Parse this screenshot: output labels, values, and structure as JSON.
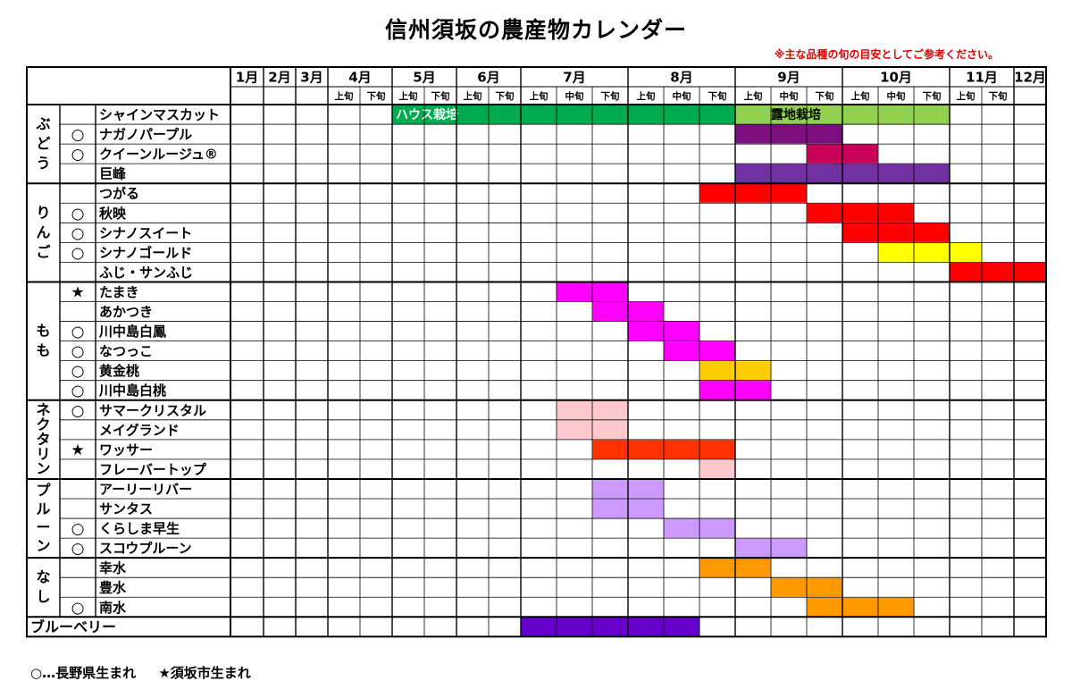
{
  "title": "信州須坂の農産物カレンダー",
  "note": "※主な品種の旬の目安としてご参考ください。",
  "legend": {
    "circle": "○…長野県生まれ",
    "star": "★須坂市生まれ"
  },
  "colors": {
    "house_green": "#00aa4e",
    "open_green": "#92d050",
    "purple_dark": "#7b0f80",
    "crimson": "#c8005a",
    "purple": "#7030a0",
    "red": "#ff0000",
    "yellow": "#ffff00",
    "magenta": "#ff00ff",
    "gold": "#ffcc00",
    "pink_light": "#ffc7ce",
    "orange_red": "#ff3300",
    "lavender": "#cc99ff",
    "orange": "#ff9900",
    "violet": "#6600cc"
  },
  "chart_data": {
    "type": "table",
    "months": [
      {
        "label": "1月",
        "subs": []
      },
      {
        "label": "2月",
        "subs": []
      },
      {
        "label": "3月",
        "subs": []
      },
      {
        "label": "4月",
        "subs": [
          "上旬",
          "下旬"
        ]
      },
      {
        "label": "5月",
        "subs": [
          "上旬",
          "下旬"
        ]
      },
      {
        "label": "6月",
        "subs": [
          "上旬",
          "下旬"
        ]
      },
      {
        "label": "7月",
        "subs": [
          "上旬",
          "中旬",
          "下旬"
        ]
      },
      {
        "label": "8月",
        "subs": [
          "上旬",
          "中旬",
          "下旬"
        ]
      },
      {
        "label": "9月",
        "subs": [
          "上旬",
          "中旬",
          "下旬"
        ]
      },
      {
        "label": "10月",
        "subs": [
          "上旬",
          "中旬",
          "下旬"
        ]
      },
      {
        "label": "11月",
        "subs": [
          "上旬",
          "下旬"
        ]
      },
      {
        "label": "12月",
        "subs": []
      }
    ],
    "groups": [
      {
        "name": "ぶどう",
        "items": [
          {
            "name": "シャインマスカット",
            "mark": "",
            "bars": [
              {
                "start": 4,
                "end": 8.0,
                "color": "#00aa4e",
                "label": "ハウス栽培"
              },
              {
                "start": 8.0,
                "end": 10.0,
                "color": "#92d050",
                "label": "露地栽培"
              }
            ]
          },
          {
            "name": "ナガノパープル",
            "mark": "○",
            "bars": [
              {
                "start": 8.0,
                "end": 9.0,
                "color": "#7b0f80"
              }
            ]
          },
          {
            "name": "クイーンルージュ®",
            "mark": "○",
            "bars": [
              {
                "start": 8.67,
                "end": 9.33,
                "color": "#c8005a"
              }
            ]
          },
          {
            "name": "巨峰",
            "mark": "",
            "bars": [
              {
                "start": 8.0,
                "end": 10.0,
                "color": "#7030a0"
              }
            ]
          }
        ]
      },
      {
        "name": "りんご",
        "items": [
          {
            "name": "つがる",
            "mark": "",
            "bars": [
              {
                "start": 7.67,
                "end": 8.67,
                "color": "#ff0000"
              }
            ]
          },
          {
            "name": "秋映",
            "mark": "○",
            "bars": [
              {
                "start": 8.67,
                "end": 9.67,
                "color": "#ff0000"
              }
            ]
          },
          {
            "name": "シナノスイート",
            "mark": "○",
            "bars": [
              {
                "start": 9.0,
                "end": 10.0,
                "color": "#ff0000"
              }
            ]
          },
          {
            "name": "シナノゴールド",
            "mark": "○",
            "bars": [
              {
                "start": 9.33,
                "end": 10.5,
                "color": "#ffff00"
              }
            ]
          },
          {
            "name": "ふじ・サンふじ",
            "mark": "",
            "bars": [
              {
                "start": 10.0,
                "end": 12.0,
                "color": "#ff0000"
              }
            ]
          }
        ]
      },
      {
        "name": "もも",
        "items": [
          {
            "name": "たまき",
            "mark": "★",
            "bars": [
              {
                "start": 6.33,
                "end": 7.0,
                "color": "#ff00ff"
              }
            ]
          },
          {
            "name": "あかつき",
            "mark": "",
            "bars": [
              {
                "start": 6.67,
                "end": 7.33,
                "color": "#ff00ff"
              }
            ]
          },
          {
            "name": "川中島白鳳",
            "mark": "○",
            "bars": [
              {
                "start": 7.0,
                "end": 7.67,
                "color": "#ff00ff"
              }
            ]
          },
          {
            "name": "なつっこ",
            "mark": "○",
            "bars": [
              {
                "start": 7.33,
                "end": 8.0,
                "color": "#ff00ff"
              }
            ]
          },
          {
            "name": "黄金桃",
            "mark": "○",
            "bars": [
              {
                "start": 7.67,
                "end": 8.33,
                "color": "#ffcc00"
              }
            ]
          },
          {
            "name": "川中島白桃",
            "mark": "○",
            "bars": [
              {
                "start": 7.67,
                "end": 8.33,
                "color": "#ff00ff"
              }
            ]
          }
        ]
      },
      {
        "name": "ネクタリン",
        "items": [
          {
            "name": "サマークリスタル",
            "mark": "○",
            "bars": [
              {
                "start": 6.33,
                "end": 7.0,
                "color": "#ffc7ce"
              }
            ]
          },
          {
            "name": "メイグランド",
            "mark": "",
            "bars": [
              {
                "start": 6.33,
                "end": 7.0,
                "color": "#ffc7ce"
              }
            ]
          },
          {
            "name": "ワッサー",
            "mark": "★",
            "bars": [
              {
                "start": 6.67,
                "end": 8.0,
                "color": "#ff3300"
              }
            ]
          },
          {
            "name": "フレーバートップ",
            "mark": "",
            "bars": [
              {
                "start": 7.67,
                "end": 8.0,
                "color": "#ffc7ce"
              }
            ]
          }
        ]
      },
      {
        "name": "プルーン",
        "items": [
          {
            "name": "アーリーリバー",
            "mark": "",
            "bars": [
              {
                "start": 6.67,
                "end": 7.33,
                "color": "#cc99ff"
              }
            ]
          },
          {
            "name": "サンタス",
            "mark": "",
            "bars": [
              {
                "start": 6.67,
                "end": 7.33,
                "color": "#cc99ff"
              }
            ]
          },
          {
            "name": "くらしま早生",
            "mark": "○",
            "bars": [
              {
                "start": 7.33,
                "end": 8.0,
                "color": "#cc99ff"
              }
            ]
          },
          {
            "name": "スコウプルーン",
            "mark": "○",
            "bars": [
              {
                "start": 8.0,
                "end": 8.67,
                "color": "#cc99ff"
              }
            ]
          }
        ]
      },
      {
        "name": "なし",
        "items": [
          {
            "name": "幸水",
            "mark": "",
            "bars": [
              {
                "start": 7.67,
                "end": 8.33,
                "color": "#ff9900"
              }
            ]
          },
          {
            "name": "豊水",
            "mark": "",
            "bars": [
              {
                "start": 8.33,
                "end": 9.0,
                "color": "#ff9900"
              }
            ]
          },
          {
            "name": "南水",
            "mark": "○",
            "bars": [
              {
                "start": 8.67,
                "end": 9.67,
                "color": "#ff9900"
              }
            ]
          }
        ]
      },
      {
        "name": "ブルーベリー",
        "items": [
          {
            "name": "",
            "mark": "",
            "bars": [
              {
                "start": 6.0,
                "end": 7.67,
                "color": "#6600cc"
              }
            ]
          }
        ]
      }
    ]
  }
}
